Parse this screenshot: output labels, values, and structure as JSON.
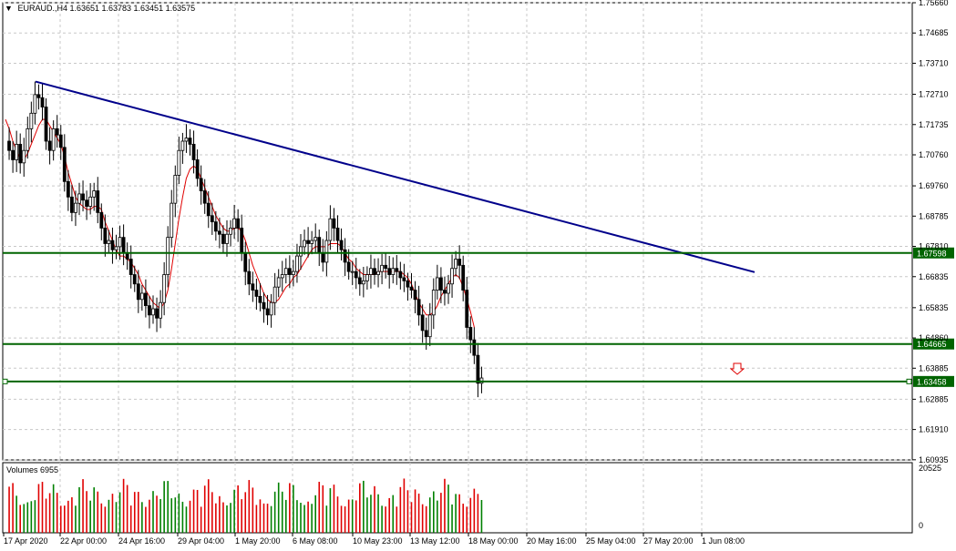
{
  "header": {
    "menu_icon": "dropdown-triangle-icon",
    "symbol": "EURAUD.,H4",
    "ohlc": "1.63651 1.63783 1.63451 1.63575"
  },
  "volume": {
    "label": "Volumes 6955",
    "max_tick": "20525",
    "min_tick": "0"
  },
  "colors": {
    "background": "#ffffff",
    "grid": "#c8c8c8",
    "candle": "#000000",
    "moving_average": "#e00000",
    "trendline": "#00008b",
    "level": "#006400",
    "volume_up": "#008000",
    "volume_down": "#e00000",
    "sell_arrow": "#e00000"
  },
  "chart_data": {
    "type": "candlestick",
    "symbol": "EURAUD",
    "timeframe": "H4",
    "ylim": [
      1.6093,
      1.7566
    ],
    "price_ticks": [
      "1.75660",
      "1.74685",
      "1.73710",
      "1.72710",
      "1.71735",
      "1.70760",
      "1.69760",
      "1.68785",
      "1.67810",
      "1.66835",
      "1.65835",
      "1.64860",
      "1.63885",
      "1.62885",
      "1.61910",
      "1.60935"
    ],
    "time_labels": [
      "17 Apr 2020",
      "22 Apr 00:00",
      "24 Apr 16:00",
      "29 Apr 04:00",
      "1 May 20:00",
      "6 May 08:00",
      "10 May 23:00",
      "13 May 12:00",
      "18 May 00:00",
      "20 May 16:00",
      "25 May 04:00",
      "27 May 20:00",
      "1 Jun 08:00"
    ],
    "levels": [
      {
        "price": 1.67598,
        "label": "1.67598"
      },
      {
        "price": 1.64665,
        "label": "1.64665"
      },
      {
        "price": 1.63458,
        "label": "1.63458"
      }
    ],
    "trendline": {
      "start_price": 1.7312,
      "end_price": 1.6698
    },
    "price_path": [
      1.712,
      1.709,
      1.706,
      1.711,
      1.705,
      1.709,
      1.716,
      1.721,
      1.727,
      1.726,
      1.723,
      1.712,
      1.709,
      1.716,
      1.714,
      1.71,
      1.699,
      1.694,
      1.689,
      1.692,
      1.695,
      1.693,
      1.691,
      1.694,
      1.696,
      1.689,
      1.684,
      1.679,
      1.68,
      1.677,
      1.678,
      1.681,
      1.676,
      1.674,
      1.669,
      1.666,
      1.661,
      1.663,
      1.659,
      1.656,
      1.658,
      1.655,
      1.66,
      1.669,
      1.681,
      1.692,
      1.701,
      1.709,
      1.712,
      1.713,
      1.711,
      1.706,
      1.7,
      1.696,
      1.692,
      1.688,
      1.686,
      1.683,
      1.682,
      1.679,
      1.682,
      1.684,
      1.687,
      1.684,
      1.676,
      1.67,
      1.666,
      1.664,
      1.662,
      1.66,
      1.658,
      1.656,
      1.66,
      1.665,
      1.668,
      1.669,
      1.671,
      1.669,
      1.67,
      1.675,
      1.678,
      1.68,
      1.679,
      1.68,
      1.681,
      1.676,
      1.673,
      1.68,
      1.687,
      1.684,
      1.68,
      1.677,
      1.673,
      1.67,
      1.67,
      1.668,
      1.666,
      1.667,
      1.669,
      1.671,
      1.669,
      1.67,
      1.672,
      1.671,
      1.669,
      1.671,
      1.67,
      1.668,
      1.667,
      1.665,
      1.664,
      1.661,
      1.656,
      1.651,
      1.649,
      1.656,
      1.664,
      1.668,
      1.664,
      1.663,
      1.666,
      1.671,
      1.674,
      1.672,
      1.664,
      1.652,
      1.648,
      1.643,
      1.634,
      1.6357
    ],
    "ma_path": [
      1.719,
      1.716,
      1.712,
      1.709,
      1.706,
      1.706,
      1.708,
      1.711,
      1.714,
      1.717,
      1.719,
      1.719,
      1.717,
      1.715,
      1.713,
      1.711,
      1.707,
      1.702,
      1.698,
      1.694,
      1.692,
      1.691,
      1.69,
      1.69,
      1.691,
      1.691,
      1.69,
      1.686,
      1.683,
      1.68,
      1.677,
      1.675,
      1.675,
      1.674,
      1.673,
      1.671,
      1.669,
      1.666,
      1.664,
      1.662,
      1.66,
      1.659,
      1.658,
      1.66,
      1.664,
      1.671,
      1.679,
      1.687,
      1.694,
      1.7,
      1.703,
      1.704,
      1.703,
      1.7,
      1.697,
      1.694,
      1.691,
      1.688,
      1.686,
      1.684,
      1.683,
      1.683,
      1.684,
      1.684,
      1.683,
      1.68,
      1.676,
      1.672,
      1.669,
      1.666,
      1.663,
      1.661,
      1.66,
      1.66,
      1.661,
      1.663,
      1.665,
      1.666,
      1.668,
      1.669,
      1.671,
      1.673,
      1.675,
      1.677,
      1.678,
      1.678,
      1.678,
      1.678,
      1.679,
      1.679,
      1.679,
      1.678,
      1.676,
      1.674,
      1.673,
      1.671,
      1.67,
      1.669,
      1.669,
      1.669,
      1.669,
      1.67,
      1.67,
      1.67,
      1.67,
      1.67,
      1.67,
      1.67,
      1.669,
      1.668,
      1.666,
      1.663,
      1.66,
      1.658,
      1.656,
      1.656,
      1.657,
      1.659,
      1.662,
      1.664,
      1.666,
      1.668,
      1.669,
      1.668,
      1.665,
      1.661,
      1.657,
      1.652
    ]
  }
}
